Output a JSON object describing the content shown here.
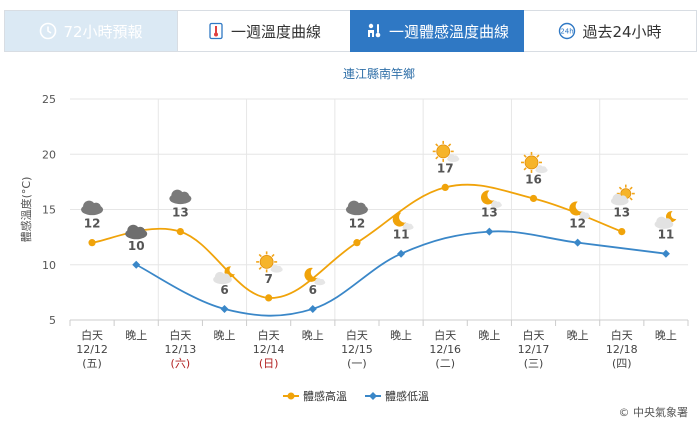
{
  "tabs": [
    {
      "label": "72小時預報",
      "state": "disabled",
      "icon": "clock-icon"
    },
    {
      "label": "一週溫度曲線",
      "state": "normal",
      "icon": "thermometer-icon"
    },
    {
      "label": "一週體感溫度曲線",
      "state": "active",
      "icon": "feels-like-icon"
    },
    {
      "label": "過去24小時",
      "state": "normal",
      "icon": "past-24h-icon"
    }
  ],
  "credit": "© 中央氣象署",
  "colors": {
    "high": "#f0a30a",
    "low": "#3a87c8",
    "grid": "#e6e6e6",
    "active_tab": "#2f78c4",
    "holiday": "#b22222"
  },
  "chart_data": {
    "type": "line",
    "title": "連江縣南竿鄉",
    "ylabel": "體感溫度(°C)",
    "ylim": [
      5,
      25
    ],
    "yticks": [
      5,
      10,
      15,
      20,
      25
    ],
    "x_periods": [
      {
        "period": "白天",
        "date": "12/12",
        "weekday": "(五)",
        "holiday": false
      },
      {
        "period": "晚上"
      },
      {
        "period": "白天",
        "date": "12/13",
        "weekday": "(六)",
        "holiday": true
      },
      {
        "period": "晚上"
      },
      {
        "period": "白天",
        "date": "12/14",
        "weekday": "(日)",
        "holiday": true
      },
      {
        "period": "晚上"
      },
      {
        "period": "白天",
        "date": "12/15",
        "weekday": "(一)",
        "holiday": false
      },
      {
        "period": "晚上"
      },
      {
        "period": "白天",
        "date": "12/16",
        "weekday": "(二)",
        "holiday": false
      },
      {
        "period": "晚上"
      },
      {
        "period": "白天",
        "date": "12/17",
        "weekday": "(三)",
        "holiday": false
      },
      {
        "period": "晚上"
      },
      {
        "period": "白天",
        "date": "12/18",
        "weekday": "(四)",
        "holiday": false
      },
      {
        "period": "晚上"
      }
    ],
    "series": [
      {
        "name": "體感高溫",
        "color": "#f0a30a",
        "x_index": [
          0,
          2,
          4,
          6,
          8,
          10,
          12
        ],
        "values": [
          12,
          13,
          7,
          12,
          17,
          16,
          13
        ]
      },
      {
        "name": "體感低溫",
        "color": "#3a87c8",
        "x_index": [
          1,
          3,
          5,
          7,
          9,
          11,
          13
        ],
        "values": [
          10,
          6,
          6,
          11,
          13,
          12,
          11
        ]
      }
    ],
    "weather_icons": [
      {
        "x_index": 0,
        "value": 12,
        "icon": "cloudy-icon"
      },
      {
        "x_index": 1,
        "value": 10,
        "icon": "dark-cloudy-icon"
      },
      {
        "x_index": 2,
        "value": 13,
        "icon": "cloudy-icon"
      },
      {
        "x_index": 3,
        "value": 6,
        "icon": "cloud-moon-icon"
      },
      {
        "x_index": 4,
        "value": 7,
        "icon": "sun-cloud-icon"
      },
      {
        "x_index": 5,
        "value": 6,
        "icon": "moon-cloud-icon"
      },
      {
        "x_index": 6,
        "value": 12,
        "icon": "cloudy-icon"
      },
      {
        "x_index": 7,
        "value": 11,
        "icon": "moon-cloud-icon"
      },
      {
        "x_index": 8,
        "value": 17,
        "icon": "sun-cloud-icon"
      },
      {
        "x_index": 9,
        "value": 13,
        "icon": "moon-cloud-icon"
      },
      {
        "x_index": 10,
        "value": 16,
        "icon": "sun-cloud-icon"
      },
      {
        "x_index": 11,
        "value": 12,
        "icon": "moon-cloud-icon"
      },
      {
        "x_index": 12,
        "value": 13,
        "icon": "cloud-sun-icon"
      },
      {
        "x_index": 13,
        "value": 11,
        "icon": "cloud-moon-icon"
      }
    ],
    "legend_position": "bottom-center",
    "grid": true
  }
}
